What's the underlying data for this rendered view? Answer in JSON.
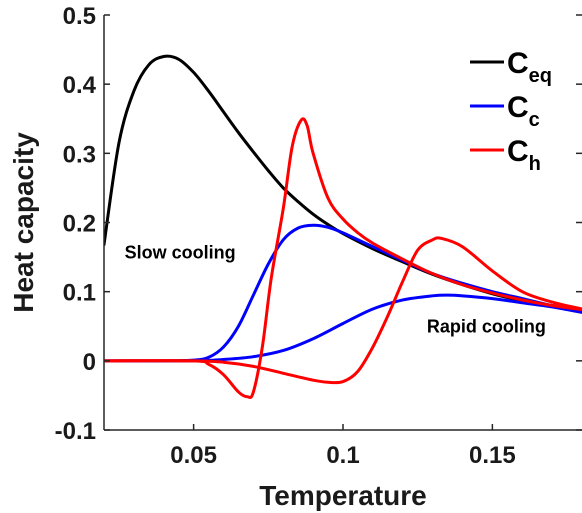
{
  "chart_data": {
    "type": "line",
    "title": "",
    "xlabel": "Temperature",
    "ylabel": "Heat capacity",
    "xlim": [
      0.02,
      0.18
    ],
    "ylim": [
      -0.1,
      0.5
    ],
    "xticks": [
      0.05,
      0.1,
      0.15
    ],
    "xtick_labels": [
      "0.05",
      "0.1",
      "0.15"
    ],
    "yticks": [
      -0.1,
      0,
      0.1,
      0.2,
      0.3,
      0.4,
      0.5
    ],
    "ytick_labels": [
      "-0.1",
      "0",
      "0.1",
      "0.2",
      "0.3",
      "0.4",
      "0.5"
    ],
    "grid": false,
    "legend_position": "top-right",
    "legend": [
      {
        "main": "C",
        "sub": "eq",
        "color": "#000000"
      },
      {
        "main": "C",
        "sub": "c",
        "color": "#0000ff"
      },
      {
        "main": "C",
        "sub": "h",
        "color": "#ff0000"
      }
    ],
    "annotations": [
      {
        "text": "Slow cooling",
        "x": 0.0455,
        "y": 0.148
      },
      {
        "text": "Rapid cooling",
        "x": 0.148,
        "y": 0.041
      }
    ],
    "series": [
      {
        "name": "C_eq",
        "color": "#000000",
        "x": [
          0.02,
          0.025,
          0.03,
          0.035,
          0.04,
          0.045,
          0.05,
          0.055,
          0.06,
          0.065,
          0.07,
          0.075,
          0.08,
          0.085,
          0.09,
          0.095,
          0.1,
          0.11,
          0.12,
          0.13,
          0.14,
          0.15,
          0.16,
          0.17,
          0.18
        ],
        "y": [
          0.168,
          0.315,
          0.39,
          0.428,
          0.44,
          0.436,
          0.417,
          0.39,
          0.36,
          0.33,
          0.302,
          0.275,
          0.25,
          0.23,
          0.212,
          0.197,
          0.184,
          0.162,
          0.143,
          0.125,
          0.11,
          0.097,
          0.087,
          0.08,
          0.074
        ]
      },
      {
        "name": "C_c slow cooling",
        "color": "#0000ff",
        "x": [
          0.02,
          0.04,
          0.05,
          0.055,
          0.06,
          0.065,
          0.07,
          0.075,
          0.08,
          0.085,
          0.09,
          0.095,
          0.1,
          0.105,
          0.11,
          0.12,
          0.13,
          0.14,
          0.15,
          0.16,
          0.17,
          0.18
        ],
        "y": [
          0,
          0,
          0.001,
          0.005,
          0.02,
          0.05,
          0.095,
          0.14,
          0.175,
          0.192,
          0.196,
          0.193,
          0.185,
          0.175,
          0.165,
          0.145,
          0.126,
          0.112,
          0.1,
          0.09,
          0.08,
          0.073
        ]
      },
      {
        "name": "C_c rapid cooling",
        "color": "#0000ff",
        "x": [
          0.02,
          0.05,
          0.06,
          0.07,
          0.08,
          0.09,
          0.1,
          0.11,
          0.12,
          0.13,
          0.135,
          0.14,
          0.15,
          0.16,
          0.17,
          0.18
        ],
        "y": [
          0,
          0,
          0.002,
          0.006,
          0.015,
          0.032,
          0.054,
          0.075,
          0.088,
          0.094,
          0.095,
          0.094,
          0.09,
          0.084,
          0.078,
          0.07
        ]
      },
      {
        "name": "C_h slow cooling",
        "color": "#ff0000",
        "x": [
          0.02,
          0.05,
          0.055,
          0.06,
          0.065,
          0.068,
          0.07,
          0.073,
          0.076,
          0.08,
          0.083,
          0.086,
          0.088,
          0.09,
          0.095,
          0.1,
          0.105,
          0.11,
          0.12,
          0.13,
          0.14,
          0.15,
          0.16,
          0.17,
          0.18
        ],
        "y": [
          0,
          0,
          -0.005,
          -0.02,
          -0.045,
          -0.052,
          -0.045,
          0.02,
          0.12,
          0.22,
          0.31,
          0.348,
          0.34,
          0.3,
          0.235,
          0.205,
          0.185,
          0.17,
          0.147,
          0.126,
          0.11,
          0.098,
          0.088,
          0.08,
          0.074
        ]
      },
      {
        "name": "C_h rapid cooling",
        "color": "#ff0000",
        "x": [
          0.02,
          0.05,
          0.06,
          0.07,
          0.08,
          0.09,
          0.095,
          0.1,
          0.105,
          0.11,
          0.115,
          0.12,
          0.125,
          0.13,
          0.133,
          0.14,
          0.15,
          0.16,
          0.17,
          0.18
        ],
        "y": [
          0,
          0,
          -0.002,
          -0.008,
          -0.018,
          -0.028,
          -0.031,
          -0.03,
          -0.015,
          0.02,
          0.065,
          0.115,
          0.16,
          0.175,
          0.177,
          0.165,
          0.13,
          0.1,
          0.085,
          0.075
        ]
      }
    ]
  }
}
